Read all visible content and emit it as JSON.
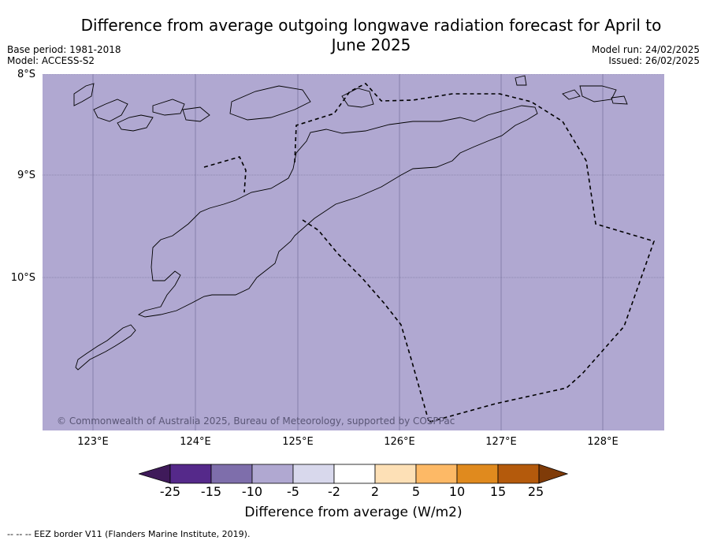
{
  "title": "Difference from average outgoing longwave radiation forecast for April to June 2025",
  "meta": {
    "base_period": "Base period: 1981-2018",
    "model": "Model: ACCESS-S2",
    "model_run": "Model run: 24/02/2025",
    "issued": "Issued: 26/02/2025"
  },
  "copyright": "© Commonwealth of Australia 2025, Bureau of Meteorology, supported by COSPPac",
  "latitude_labels": [
    "8°S",
    "9°S",
    "10°S"
  ],
  "longitude_labels": [
    "123°E",
    "124°E",
    "125°E",
    "126°E",
    "127°E",
    "128°E"
  ],
  "map": {
    "fill_color": "#b0a8d1",
    "category_shown": "-10 to -5"
  },
  "colorbar": {
    "label": "Difference from average (W/m2)",
    "ticks": [
      "-25",
      "-15",
      "-10",
      "-5",
      "-2",
      "2",
      "5",
      "10",
      "15",
      "25"
    ],
    "colors": [
      "#3f1a5a",
      "#55298a",
      "#7e6eab",
      "#b0a8d1",
      "#d8d8ec",
      "#ffffff",
      "#fde0b6",
      "#fdb966",
      "#e08a1e",
      "#b45a0c",
      "#7f3b08"
    ]
  },
  "footer": {
    "eez_note": "--  --  -- EEZ border V11 (Flanders Marine Institute, 2019)."
  }
}
